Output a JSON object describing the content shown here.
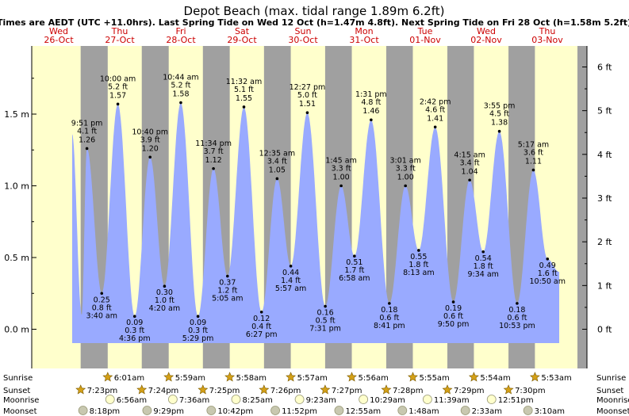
{
  "header": {
    "title": "Depot Beach (max. tidal range 1.89m 6.2ft)",
    "subtitle": "Times are AEDT (UTC +11.0hrs). Last Spring Tide on Wed 12 Oct (h=1.47m 4.8ft). Next Spring Tide on Fri 28 Oct (h=1.58m 5.2ft)"
  },
  "colors": {
    "day": "#ffffcc",
    "night": "#a0a0a0",
    "water": "#99aaff",
    "day_label": "#cc0000"
  },
  "days": [
    {
      "dow": "Wed",
      "date": "26-Oct"
    },
    {
      "dow": "Thu",
      "date": "27-Oct"
    },
    {
      "dow": "Fri",
      "date": "28-Oct"
    },
    {
      "dow": "Sat",
      "date": "29-Oct"
    },
    {
      "dow": "Sun",
      "date": "30-Oct"
    },
    {
      "dow": "Mon",
      "date": "31-Oct"
    },
    {
      "dow": "Tue",
      "date": "01-Nov"
    },
    {
      "dow": "Wed",
      "date": "02-Nov"
    },
    {
      "dow": "Thu",
      "date": "03-Nov"
    }
  ],
  "chart_data": {
    "type": "area",
    "title": "Depot Beach (max. tidal range 1.89m 6.2ft)",
    "y_left_unit": "m",
    "y_right_unit": "ft",
    "y_left_ticks": [
      0.0,
      0.5,
      1.0,
      1.5
    ],
    "y_left_labels": [
      "0.0 m",
      "0.5 m",
      "1.0 m",
      "1.5 m"
    ],
    "y_right_ticks": [
      0,
      1,
      2,
      3,
      4,
      5,
      6
    ],
    "y_right_labels": [
      "0 ft",
      "1 ft",
      "2 ft",
      "3 ft",
      "4 ft",
      "5 ft",
      "6 ft"
    ],
    "tides": [
      {
        "type": "high",
        "time": "9:51 pm",
        "date": "26-Oct",
        "ft": "4.1 ft",
        "m": "1.26 m",
        "value": 1.26
      },
      {
        "type": "low",
        "time": "3:40 am",
        "date": "27-Oct",
        "ft": "0.8 ft",
        "m": "0.25 m",
        "value": 0.25
      },
      {
        "type": "high",
        "time": "10:00 am",
        "date": "27-Oct",
        "ft": "5.2 ft",
        "m": "1.57 m",
        "value": 1.57
      },
      {
        "type": "low",
        "time": "4:36 pm",
        "date": "27-Oct",
        "ft": "0.3 ft",
        "m": "0.09 m",
        "value": 0.09
      },
      {
        "type": "high",
        "time": "10:40 pm",
        "date": "27-Oct",
        "ft": "3.9 ft",
        "m": "1.20 m",
        "value": 1.2
      },
      {
        "type": "low",
        "time": "4:20 am",
        "date": "28-Oct",
        "ft": "1.0 ft",
        "m": "0.30 m",
        "value": 0.3
      },
      {
        "type": "high",
        "time": "10:44 am",
        "date": "28-Oct",
        "ft": "5.2 ft",
        "m": "1.58 m",
        "value": 1.58
      },
      {
        "type": "low",
        "time": "5:29 pm",
        "date": "28-Oct",
        "ft": "0.3 ft",
        "m": "0.09 m",
        "value": 0.09
      },
      {
        "type": "high",
        "time": "11:34 pm",
        "date": "28-Oct",
        "ft": "3.7 ft",
        "m": "1.12 m",
        "value": 1.12
      },
      {
        "type": "low",
        "time": "5:05 am",
        "date": "29-Oct",
        "ft": "1.2 ft",
        "m": "0.37 m",
        "value": 0.37
      },
      {
        "type": "high",
        "time": "11:32 am",
        "date": "29-Oct",
        "ft": "5.1 ft",
        "m": "1.55 m",
        "value": 1.55
      },
      {
        "type": "low",
        "time": "6:27 pm",
        "date": "29-Oct",
        "ft": "0.4 ft",
        "m": "0.12 m",
        "value": 0.12
      },
      {
        "type": "high",
        "time": "12:35 am",
        "date": "30-Oct",
        "ft": "3.4 ft",
        "m": "1.05 m",
        "value": 1.05
      },
      {
        "type": "low",
        "time": "5:57 am",
        "date": "30-Oct",
        "ft": "1.4 ft",
        "m": "0.44 m",
        "value": 0.44
      },
      {
        "type": "high",
        "time": "12:27 pm",
        "date": "30-Oct",
        "ft": "5.0 ft",
        "m": "1.51 m",
        "value": 1.51
      },
      {
        "type": "low",
        "time": "7:31 pm",
        "date": "30-Oct",
        "ft": "0.5 ft",
        "m": "0.16 m",
        "value": 0.16
      },
      {
        "type": "high",
        "time": "1:45 am",
        "date": "31-Oct",
        "ft": "3.3 ft",
        "m": "1.00 m",
        "value": 1.0
      },
      {
        "type": "low",
        "time": "6:58 am",
        "date": "31-Oct",
        "ft": "1.7 ft",
        "m": "0.51 m",
        "value": 0.51
      },
      {
        "type": "high",
        "time": "1:31 pm",
        "date": "31-Oct",
        "ft": "4.8 ft",
        "m": "1.46 m",
        "value": 1.46
      },
      {
        "type": "low",
        "time": "8:41 pm",
        "date": "31-Oct",
        "ft": "0.6 ft",
        "m": "0.18 m",
        "value": 0.18
      },
      {
        "type": "high",
        "time": "3:01 am",
        "date": "01-Nov",
        "ft": "3.3 ft",
        "m": "1.00 m",
        "value": 1.0
      },
      {
        "type": "low",
        "time": "8:13 am",
        "date": "01-Nov",
        "ft": "1.8 ft",
        "m": "0.55 m",
        "value": 0.55
      },
      {
        "type": "high",
        "time": "2:42 pm",
        "date": "01-Nov",
        "ft": "4.6 ft",
        "m": "1.41 m",
        "value": 1.41
      },
      {
        "type": "low",
        "time": "9:50 pm",
        "date": "01-Nov",
        "ft": "0.6 ft",
        "m": "0.19 m",
        "value": 0.19
      },
      {
        "type": "high",
        "time": "4:15 am",
        "date": "02-Nov",
        "ft": "3.4 ft",
        "m": "1.04 m",
        "value": 1.04
      },
      {
        "type": "low",
        "time": "9:34 am",
        "date": "02-Nov",
        "ft": "1.8 ft",
        "m": "0.54 m",
        "value": 0.54
      },
      {
        "type": "high",
        "time": "3:55 pm",
        "date": "02-Nov",
        "ft": "4.5 ft",
        "m": "1.38 m",
        "value": 1.38
      },
      {
        "type": "low",
        "time": "10:53 pm",
        "date": "02-Nov",
        "ft": "0.6 ft",
        "m": "0.18 m",
        "value": 0.18
      },
      {
        "type": "high",
        "time": "5:17 am",
        "date": "03-Nov",
        "ft": "3.6 ft",
        "m": "1.11 m",
        "value": 1.11
      },
      {
        "type": "low",
        "time": "10:50 am",
        "date": "03-Nov",
        "ft": "1.6 ft",
        "m": "0.49 m",
        "value": 0.49
      }
    ]
  },
  "astro_labels": {
    "sunrise": "Sunrise",
    "sunset": "Sunset",
    "moonrise": "Moonrise",
    "moonset": "Moonset"
  },
  "astro": {
    "sunrise": [
      {
        "date": "27-Oct",
        "time": "6:01am"
      },
      {
        "date": "28-Oct",
        "time": "5:59am"
      },
      {
        "date": "29-Oct",
        "time": "5:58am"
      },
      {
        "date": "30-Oct",
        "time": "5:57am"
      },
      {
        "date": "31-Oct",
        "time": "5:56am"
      },
      {
        "date": "01-Nov",
        "time": "5:55am"
      },
      {
        "date": "02-Nov",
        "time": "5:54am"
      },
      {
        "date": "03-Nov",
        "time": "5:53am"
      }
    ],
    "sunset": [
      {
        "date": "26-Oct",
        "time": "7:23pm"
      },
      {
        "date": "27-Oct",
        "time": "7:24pm"
      },
      {
        "date": "28-Oct",
        "time": "7:25pm"
      },
      {
        "date": "29-Oct",
        "time": "7:26pm"
      },
      {
        "date": "30-Oct",
        "time": "7:27pm"
      },
      {
        "date": "31-Oct",
        "time": "7:28pm"
      },
      {
        "date": "01-Nov",
        "time": "7:29pm"
      },
      {
        "date": "02-Nov",
        "time": "7:30pm"
      }
    ],
    "moonrise": [
      {
        "date": "27-Oct",
        "time": "6:56am"
      },
      {
        "date": "28-Oct",
        "time": "7:36am"
      },
      {
        "date": "29-Oct",
        "time": "8:25am"
      },
      {
        "date": "30-Oct",
        "time": "9:23am"
      },
      {
        "date": "31-Oct",
        "time": "10:29am"
      },
      {
        "date": "01-Nov",
        "time": "11:39am"
      },
      {
        "date": "02-Nov",
        "time": "12:51pm"
      }
    ],
    "moonset": [
      {
        "date": "26-Oct",
        "time": "8:18pm"
      },
      {
        "date": "27-Oct",
        "time": "9:29pm"
      },
      {
        "date": "28-Oct",
        "time": "10:42pm"
      },
      {
        "date": "29-Oct",
        "time": "11:52pm"
      },
      {
        "date": "31-Oct",
        "time": "12:55am"
      },
      {
        "date": "01-Nov",
        "time": "1:48am"
      },
      {
        "date": "02-Nov",
        "time": "2:33am"
      },
      {
        "date": "03-Nov",
        "time": "3:10am"
      }
    ]
  }
}
